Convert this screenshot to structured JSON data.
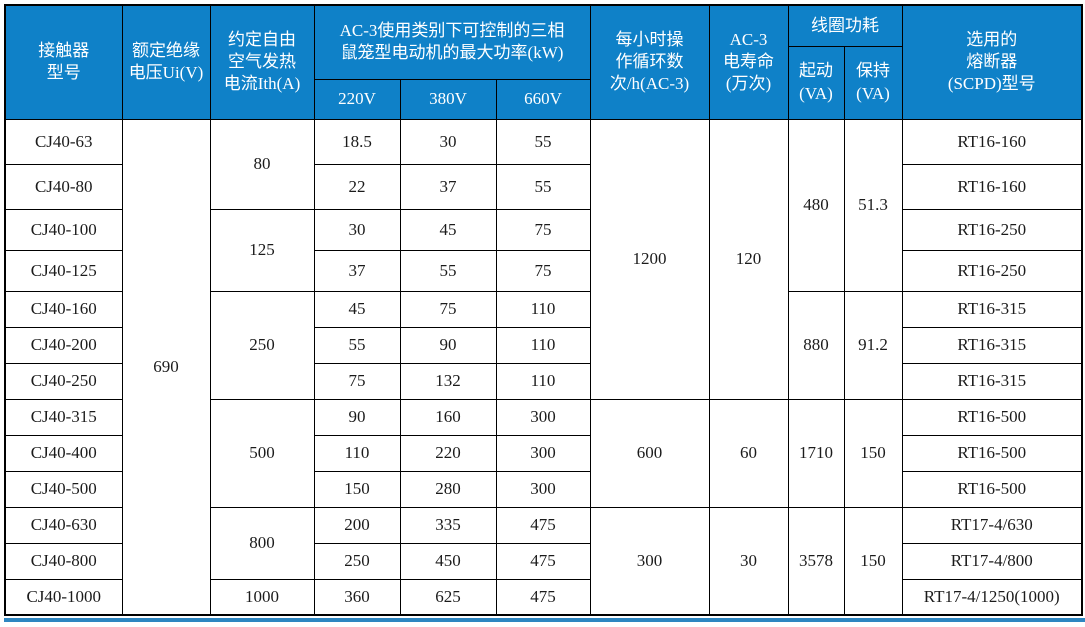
{
  "colors": {
    "header_bg": "#0f81c8",
    "header_text": "#ffffff",
    "border": "#000000",
    "body_text": "#1b1b1b",
    "bottom_rule": "#2e86c1"
  },
  "header": {
    "model": "接触器\n型号",
    "rated_voltage": "额定绝缘\n电压Ui(V)",
    "thermal_current": "约定自由\n空气发热\n电流Ith(A)",
    "ac3_power_group": "AC-3使用类别下可控制的三相\n鼠笼型电动机的最大功率(kW)",
    "v220": "220V",
    "v380": "380V",
    "v660": "660V",
    "cycles": "每小时操\n作循环数\n次/h(AC-3)",
    "life": "AC-3\n电寿命\n(万次)",
    "coil_power": "线圈功耗",
    "coil_start": "起动\n(VA)",
    "coil_hold": "保持\n(VA)",
    "fuse": "选用的\n熔断器\n(SCPD)型号"
  },
  "body_rows": [
    {
      "cells": [
        {
          "t": "CJ40-63",
          "n": "model-cell"
        },
        {
          "t": "690",
          "rs": 13,
          "n": "ui-voltage-cell"
        },
        {
          "t": "80",
          "rs": 2,
          "n": "ith-cell"
        },
        {
          "t": "18.5",
          "n": "kw-220v-cell"
        },
        {
          "t": "30",
          "n": "kw-380v-cell"
        },
        {
          "t": "55",
          "n": "kw-660v-cell"
        },
        {
          "t": "1200",
          "rs": 7,
          "n": "cycles-cell"
        },
        {
          "t": "120",
          "rs": 7,
          "n": "life-cell"
        },
        {
          "t": "480",
          "rs": 4,
          "n": "coil-start-cell"
        },
        {
          "t": "51.3",
          "rs": 4,
          "n": "coil-hold-cell"
        },
        {
          "t": "RT16-160",
          "n": "fuse-cell"
        }
      ]
    },
    {
      "cells": [
        {
          "t": "CJ40-80",
          "n": "model-cell"
        },
        {
          "t": "22",
          "n": "kw-220v-cell"
        },
        {
          "t": "37",
          "n": "kw-380v-cell"
        },
        {
          "t": "55",
          "n": "kw-660v-cell"
        },
        {
          "t": "RT16-160",
          "n": "fuse-cell"
        }
      ]
    },
    {
      "cells": [
        {
          "t": "CJ40-100",
          "n": "model-cell"
        },
        {
          "t": "125",
          "rs": 2,
          "n": "ith-cell"
        },
        {
          "t": "30",
          "n": "kw-220v-cell"
        },
        {
          "t": "45",
          "n": "kw-380v-cell"
        },
        {
          "t": "75",
          "n": "kw-660v-cell"
        },
        {
          "t": "RT16-250",
          "n": "fuse-cell"
        }
      ]
    },
    {
      "cells": [
        {
          "t": "CJ40-125",
          "n": "model-cell"
        },
        {
          "t": "37",
          "n": "kw-220v-cell"
        },
        {
          "t": "55",
          "n": "kw-380v-cell"
        },
        {
          "t": "75",
          "n": "kw-660v-cell"
        },
        {
          "t": "RT16-250",
          "n": "fuse-cell"
        }
      ]
    },
    {
      "cells": [
        {
          "t": "CJ40-160",
          "n": "model-cell"
        },
        {
          "t": "250",
          "rs": 3,
          "n": "ith-cell"
        },
        {
          "t": "45",
          "n": "kw-220v-cell"
        },
        {
          "t": "75",
          "n": "kw-380v-cell"
        },
        {
          "t": "110",
          "n": "kw-660v-cell"
        },
        {
          "t": "880",
          "rs": 3,
          "n": "coil-start-cell"
        },
        {
          "t": "91.2",
          "rs": 3,
          "n": "coil-hold-cell"
        },
        {
          "t": "RT16-315",
          "n": "fuse-cell"
        }
      ]
    },
    {
      "cells": [
        {
          "t": "CJ40-200",
          "n": "model-cell"
        },
        {
          "t": "55",
          "n": "kw-220v-cell"
        },
        {
          "t": "90",
          "n": "kw-380v-cell"
        },
        {
          "t": "110",
          "n": "kw-660v-cell"
        },
        {
          "t": "RT16-315",
          "n": "fuse-cell"
        }
      ]
    },
    {
      "cells": [
        {
          "t": "CJ40-250",
          "n": "model-cell"
        },
        {
          "t": "75",
          "n": "kw-220v-cell"
        },
        {
          "t": "132",
          "n": "kw-380v-cell"
        },
        {
          "t": "110",
          "n": "kw-660v-cell"
        },
        {
          "t": "RT16-315",
          "n": "fuse-cell"
        }
      ]
    },
    {
      "cells": [
        {
          "t": "CJ40-315",
          "n": "model-cell"
        },
        {
          "t": "500",
          "rs": 3,
          "n": "ith-cell"
        },
        {
          "t": "90",
          "n": "kw-220v-cell"
        },
        {
          "t": "160",
          "n": "kw-380v-cell"
        },
        {
          "t": "300",
          "n": "kw-660v-cell"
        },
        {
          "t": "600",
          "rs": 3,
          "n": "cycles-cell"
        },
        {
          "t": "60",
          "rs": 3,
          "n": "life-cell"
        },
        {
          "t": "1710",
          "rs": 3,
          "n": "coil-start-cell"
        },
        {
          "t": "150",
          "rs": 3,
          "n": "coil-hold-cell"
        },
        {
          "t": "RT16-500",
          "n": "fuse-cell"
        }
      ]
    },
    {
      "cells": [
        {
          "t": "CJ40-400",
          "n": "model-cell"
        },
        {
          "t": "110",
          "n": "kw-220v-cell"
        },
        {
          "t": "220",
          "n": "kw-380v-cell"
        },
        {
          "t": "300",
          "n": "kw-660v-cell"
        },
        {
          "t": "RT16-500",
          "n": "fuse-cell"
        }
      ]
    },
    {
      "cells": [
        {
          "t": "CJ40-500",
          "n": "model-cell"
        },
        {
          "t": "150",
          "n": "kw-220v-cell"
        },
        {
          "t": "280",
          "n": "kw-380v-cell"
        },
        {
          "t": "300",
          "n": "kw-660v-cell"
        },
        {
          "t": "RT16-500",
          "n": "fuse-cell"
        }
      ]
    },
    {
      "cells": [
        {
          "t": "CJ40-630",
          "n": "model-cell"
        },
        {
          "t": "800",
          "rs": 2,
          "n": "ith-cell"
        },
        {
          "t": "200",
          "n": "kw-220v-cell"
        },
        {
          "t": "335",
          "n": "kw-380v-cell"
        },
        {
          "t": "475",
          "n": "kw-660v-cell"
        },
        {
          "t": "300",
          "rs": 3,
          "n": "cycles-cell"
        },
        {
          "t": "30",
          "rs": 3,
          "n": "life-cell"
        },
        {
          "t": "3578",
          "rs": 3,
          "n": "coil-start-cell"
        },
        {
          "t": "150",
          "rs": 3,
          "n": "coil-hold-cell"
        },
        {
          "t": "RT17-4/630",
          "n": "fuse-cell"
        }
      ]
    },
    {
      "cells": [
        {
          "t": "CJ40-800",
          "n": "model-cell"
        },
        {
          "t": "250",
          "n": "kw-220v-cell"
        },
        {
          "t": "450",
          "n": "kw-380v-cell"
        },
        {
          "t": "475",
          "n": "kw-660v-cell"
        },
        {
          "t": "RT17-4/800",
          "n": "fuse-cell"
        }
      ]
    },
    {
      "cells": [
        {
          "t": "CJ40-1000",
          "n": "model-cell"
        },
        {
          "t": "1000",
          "n": "ith-cell"
        },
        {
          "t": "360",
          "n": "kw-220v-cell"
        },
        {
          "t": "625",
          "n": "kw-380v-cell"
        },
        {
          "t": "475",
          "n": "kw-660v-cell"
        },
        {
          "t": "RT17-4/1250(1000)",
          "n": "fuse-cell"
        }
      ]
    }
  ]
}
